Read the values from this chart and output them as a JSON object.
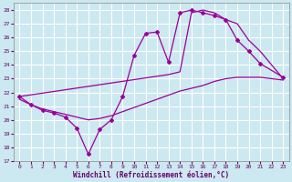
{
  "xlabel": "Windchill (Refroidissement éolien,°C)",
  "bg_color": "#cce8f0",
  "grid_color": "#ffffff",
  "line_color": "#990099",
  "xlim": [
    -0.5,
    23.5
  ],
  "ylim": [
    17,
    28.5
  ],
  "xticks": [
    0,
    1,
    2,
    3,
    4,
    5,
    6,
    7,
    8,
    9,
    10,
    11,
    12,
    13,
    14,
    15,
    16,
    17,
    18,
    19,
    20,
    21,
    22,
    23
  ],
  "yticks": [
    17,
    18,
    19,
    20,
    21,
    22,
    23,
    24,
    25,
    26,
    27,
    28
  ],
  "line_zigzag": {
    "x": [
      0,
      1,
      2,
      3,
      4,
      5,
      6,
      7,
      8,
      9,
      10,
      11,
      12,
      13,
      14,
      15,
      16,
      17,
      18,
      19,
      20,
      21,
      23
    ],
    "y": [
      21.7,
      21.1,
      20.7,
      20.5,
      20.2,
      19.4,
      17.5,
      19.3,
      20.0,
      21.7,
      24.7,
      26.3,
      26.4,
      24.2,
      27.8,
      28.0,
      27.8,
      27.6,
      27.3,
      25.8,
      25.0,
      24.1,
      23.1
    ]
  },
  "line_upper": {
    "x": [
      0,
      13,
      14,
      15,
      16,
      17,
      18,
      19,
      20,
      21,
      23
    ],
    "y": [
      21.7,
      23.3,
      23.5,
      27.8,
      28.0,
      27.8,
      27.3,
      27.0,
      25.8,
      25.0,
      23.0
    ]
  },
  "line_lower": {
    "x": [
      0,
      1,
      2,
      3,
      4,
      5,
      6,
      7,
      8,
      9,
      10,
      11,
      12,
      13,
      14,
      15,
      16,
      17,
      18,
      19,
      20,
      21,
      22,
      23
    ],
    "y": [
      21.5,
      21.1,
      20.8,
      20.6,
      20.4,
      20.2,
      20.0,
      20.1,
      20.3,
      20.6,
      20.9,
      21.2,
      21.5,
      21.8,
      22.1,
      22.3,
      22.5,
      22.8,
      23.0,
      23.1,
      23.1,
      23.1,
      23.0,
      22.9
    ]
  }
}
